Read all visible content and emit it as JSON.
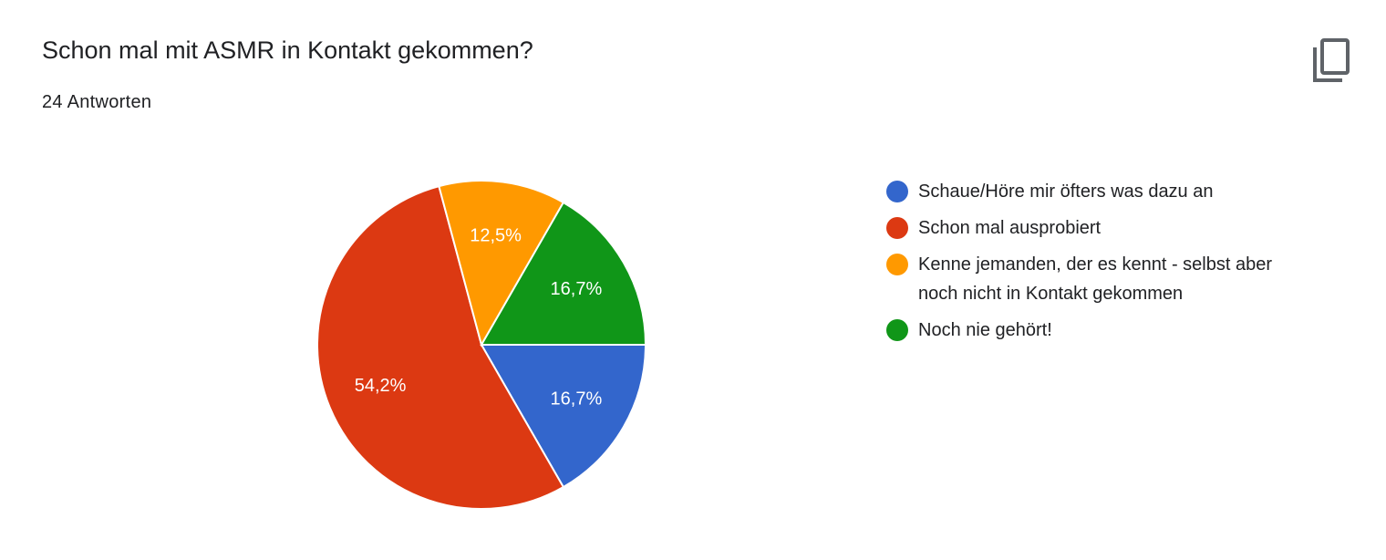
{
  "chart_data": {
    "type": "pie",
    "title": "Schon mal mit ASMR in Kontakt gekommen?",
    "subtitle": "24 Antworten",
    "categories": [
      "Schaue/Höre mir öfters was dazu an",
      "Schon mal ausprobiert",
      "Kenne jemanden, der es kennt - selbst aber noch nicht in Kontakt gekommen",
      "Noch nie gehört!"
    ],
    "values": [
      16.7,
      54.2,
      12.5,
      16.7
    ],
    "value_labels": [
      "16,7%",
      "54,2%",
      "12,5%",
      "16,7%"
    ],
    "colors": [
      "#3366cc",
      "#dc3912",
      "#ff9900",
      "#109618"
    ]
  }
}
